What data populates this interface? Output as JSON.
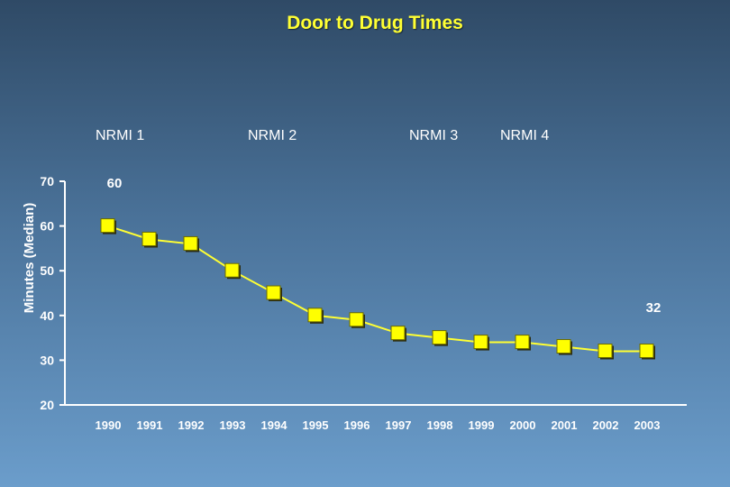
{
  "chart_data": {
    "type": "line",
    "title": "Door to Drug Times",
    "ylabel": "Minutes (Median)",
    "xlabel": "",
    "ylim": [
      20,
      70
    ],
    "yticks": [
      "70",
      "60",
      "50",
      "40",
      "30",
      "20"
    ],
    "categories": [
      "1990",
      "1991",
      "1992",
      "1993",
      "1994",
      "1995",
      "1996",
      "1997",
      "1998",
      "1999",
      "2000",
      "2001",
      "2002",
      "2003"
    ],
    "series": [
      {
        "values": [
          60,
          57,
          56,
          50,
          45,
          40,
          39,
          36,
          35,
          34,
          34,
          33,
          32,
          32
        ]
      }
    ],
    "annotations": [
      {
        "text": "60",
        "category": "1990",
        "value": 60
      },
      {
        "text": "32",
        "category": "2003",
        "value": 32
      }
    ],
    "phases": [
      "NRMI 1",
      "NRMI 2",
      "NRMI 3",
      "NRMI 4"
    ],
    "colors": {
      "line": "#ffff33",
      "marker": "#ffff00",
      "marker_border": "#6b6b00",
      "text": "#ffffff",
      "title": "#ffff33"
    },
    "grid": false,
    "legend": "none"
  }
}
